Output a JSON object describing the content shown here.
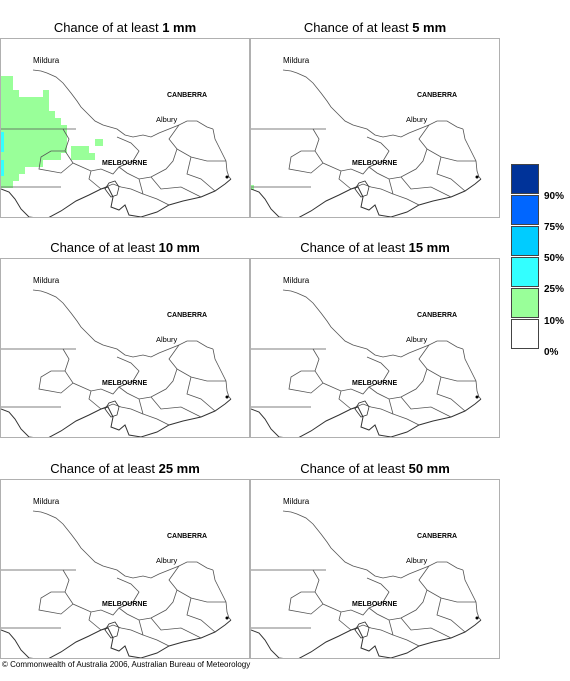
{
  "panels": [
    {
      "prefix": "Chance of at least ",
      "amount": "1 mm",
      "shading": "heavy"
    },
    {
      "prefix": "Chance of at least ",
      "amount": "5 mm",
      "shading": "trace"
    },
    {
      "prefix": "Chance of at least ",
      "amount": "10 mm",
      "shading": "none"
    },
    {
      "prefix": "Chance of at least ",
      "amount": "15 mm",
      "shading": "none"
    },
    {
      "prefix": "Chance of at least ",
      "amount": "25 mm",
      "shading": "none"
    },
    {
      "prefix": "Chance of at least ",
      "amount": "50 mm",
      "shading": "none"
    }
  ],
  "places": {
    "mildura": "Mildura",
    "canberra": "CANBERRA",
    "albury": "Albury",
    "melbourne": "MELBOURNE"
  },
  "legend": {
    "labels": [
      "90%",
      "75%",
      "50%",
      "25%",
      "10%",
      "0%"
    ],
    "colors": [
      "#003399",
      "#0066ff",
      "#00ccff",
      "#33ffff",
      "#99ff99",
      "#ffffff"
    ]
  },
  "copyright": "© Commonwealth of Australia 2006, Australian Bureau of Meteorology"
}
